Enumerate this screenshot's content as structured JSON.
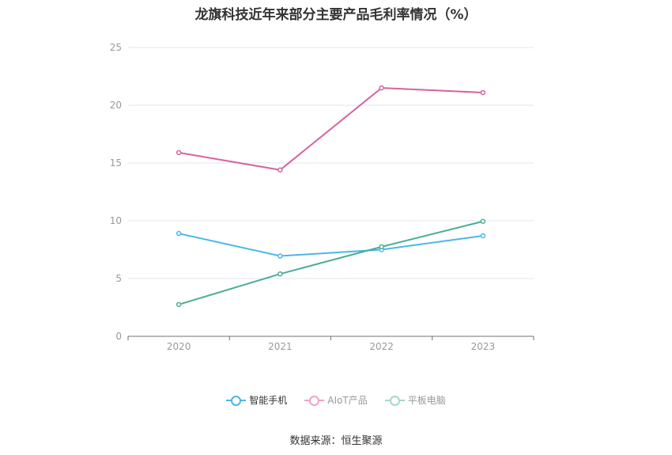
{
  "chart_data": {
    "type": "line",
    "title": "龙旗科技近年来部分主要产品毛利率情况（%）",
    "categories": [
      "2020",
      "2021",
      "2022",
      "2023"
    ],
    "series": [
      {
        "name": "智能手机",
        "values": [
          8.9,
          6.95,
          7.5,
          8.7
        ],
        "color": "#4db6e8"
      },
      {
        "name": "AIoT产品",
        "values": [
          15.9,
          14.4,
          21.5,
          21.1
        ],
        "color": "#d6629f"
      },
      {
        "name": "平板电脑",
        "values": [
          2.75,
          5.4,
          7.75,
          9.95
        ],
        "color": "#4aae94"
      }
    ],
    "ylim": [
      0,
      25
    ],
    "yticks": [
      "0",
      "5",
      "10",
      "15",
      "20",
      "25"
    ],
    "grid": true,
    "legend_position": "bottom"
  },
  "legend_colors": [
    "#4db6e8",
    "#f0a3c8",
    "#a6d7cb"
  ],
  "source": "数据来源：恒生聚源"
}
